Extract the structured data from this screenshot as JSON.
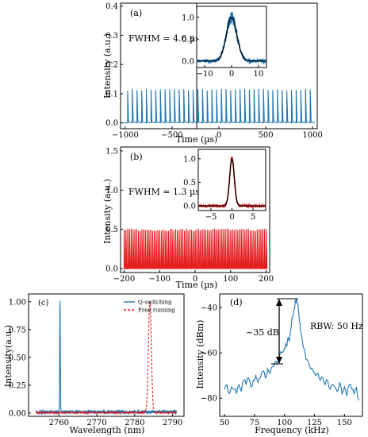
{
  "colors": {
    "blue": "#1f77b4",
    "red": "#e41a1c",
    "black": "#000000"
  },
  "chart_data": [
    {
      "id": "a",
      "type": "line",
      "panel_label": "(a)",
      "title": "",
      "xlabel": "Time (µs)",
      "ylabel": "Intensity (a.u.)",
      "xlim": [
        -1050,
        1050
      ],
      "ylim": [
        -0.02,
        0.41
      ],
      "xticks": [
        "-1000",
        "-500",
        "0",
        "500",
        "1000"
      ],
      "yticks": [
        "0.0",
        "0.1",
        "0.2",
        "0.3",
        "0.4"
      ],
      "annotation": "FWHM = 4.6 µs",
      "series": [
        {
          "style": "pulse-train",
          "color": "blue",
          "period_us": 50,
          "x_start": -975,
          "x_end": 975,
          "peak": 0.115,
          "baseline": 0.0
        }
      ],
      "inset": {
        "xlim": [
          -13,
          13
        ],
        "ylim": [
          -0.15,
          1.25
        ],
        "xticks": [
          "-10",
          "0",
          "10"
        ],
        "yticks": [
          "0.0",
          "0.5",
          "1.0"
        ],
        "series": [
          {
            "style": "gaussian-band",
            "color": "blue",
            "center": 0,
            "fwhm": 4.6,
            "peak": 1.0,
            "noise": 0.1
          },
          {
            "style": "gaussian-fit",
            "color": "black",
            "center": 0,
            "fwhm": 4.6,
            "peak": 1.0
          }
        ]
      }
    },
    {
      "id": "b",
      "type": "line",
      "panel_label": "(b)",
      "title": "",
      "xlabel": "Time (µs)",
      "ylabel": "Intensity (a.u.)",
      "xlim": [
        -210,
        210
      ],
      "ylim": [
        -0.05,
        1.55
      ],
      "xticks": [
        "-200",
        "-100",
        "0",
        "100",
        "200"
      ],
      "yticks": [
        "0.0",
        "0.5",
        "1.0",
        "1.5"
      ],
      "annotation": "FWHM = 1.3 µs",
      "series": [
        {
          "style": "pulse-train",
          "color": "red",
          "period_us": 5,
          "x_start": -200,
          "x_end": 200,
          "peak": 0.5,
          "baseline": 0.0
        }
      ],
      "inset": {
        "xlim": [
          -8,
          8
        ],
        "ylim": [
          -0.1,
          1.2
        ],
        "xticks": [
          "-5",
          "0",
          "5"
        ],
        "yticks": [
          "0.0",
          "0.5",
          "1.0"
        ],
        "series": [
          {
            "style": "gaussian-band",
            "color": "red",
            "center": 0,
            "fwhm": 1.3,
            "peak": 1.0,
            "noise": 0.05
          },
          {
            "style": "gaussian-fit",
            "color": "black",
            "center": 0,
            "fwhm": 1.3,
            "peak": 1.0
          }
        ]
      }
    },
    {
      "id": "c",
      "type": "line",
      "panel_label": "(c)",
      "title": "",
      "xlabel": "Wavelength (nm)",
      "ylabel": "Intensity(a.u.)",
      "xlim": [
        2752,
        2793
      ],
      "ylim": [
        -0.03,
        1.07
      ],
      "xticks": [
        "2760",
        "2770",
        "2780",
        "2790"
      ],
      "yticks": [
        "0.00",
        "0.25",
        "0.50",
        "0.75",
        "1.00"
      ],
      "legend": {
        "position": "top-right",
        "entries": [
          "Q-switching",
          "Free running"
        ]
      },
      "series": [
        {
          "name": "Q-switching",
          "color": "blue",
          "dash": false,
          "peak_x": 2760.3,
          "peak": 1.0,
          "width": 0.08,
          "noise": 0.03
        },
        {
          "name": "Free running",
          "color": "red",
          "dash": true,
          "peak_x": 2784.0,
          "peak": 1.0,
          "width": 0.38,
          "noise": 0.012
        }
      ]
    },
    {
      "id": "d",
      "type": "line",
      "panel_label": "(d)",
      "title": "",
      "xlabel": "Frequency (kHz)",
      "ylabel": "Intensity (dBm)",
      "xlim": [
        46,
        165
      ],
      "ylim": [
        -88,
        -34
      ],
      "xticks": [
        "50",
        "75",
        "100",
        "125",
        "150"
      ],
      "yticks": [
        "-80",
        "-60",
        "-40"
      ],
      "annotation_dB": "~35 dB",
      "annotation_rbw": "RBW: 50 Hz",
      "series": [
        {
          "color": "blue",
          "x": [
            50,
            52,
            54,
            56,
            58,
            60,
            62,
            64,
            66,
            68,
            70,
            72,
            74,
            76,
            78,
            80,
            82,
            84,
            86,
            88,
            90,
            92,
            94,
            96,
            98,
            100,
            101,
            102,
            103,
            104,
            105,
            106,
            107,
            108,
            109,
            110,
            111,
            112,
            113,
            114,
            115,
            116,
            117,
            118,
            120,
            122,
            124,
            126,
            128,
            130,
            132,
            134,
            136,
            138,
            140,
            142,
            144,
            146,
            148,
            150,
            152,
            154,
            156,
            158,
            160,
            162
          ],
          "y": [
            -76,
            -74,
            -78,
            -75,
            -76,
            -78,
            -74,
            -77,
            -72,
            -74,
            -71,
            -75,
            -72,
            -70,
            -73,
            -71,
            -68,
            -71,
            -67,
            -69,
            -66,
            -64,
            -65,
            -61,
            -60,
            -58,
            -56,
            -57,
            -53,
            -55,
            -50,
            -46,
            -44,
            -41,
            -37,
            -36,
            -38,
            -43,
            -47,
            -52,
            -55,
            -58,
            -60,
            -63,
            -64,
            -67,
            -68,
            -70,
            -69,
            -72,
            -71,
            -74,
            -72,
            -76,
            -74,
            -75,
            -77,
            -73,
            -78,
            -75,
            -79,
            -74,
            -76,
            -78,
            -75,
            -81
          ]
        }
      ]
    }
  ]
}
